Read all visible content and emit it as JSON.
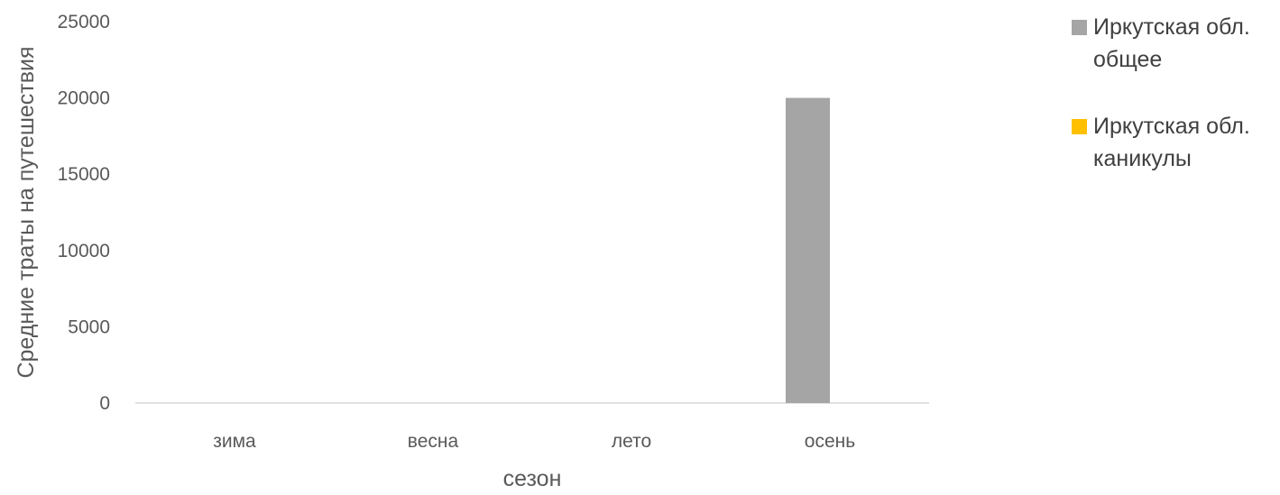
{
  "chart_data": {
    "type": "bar",
    "title": "",
    "xlabel": "сезон",
    "ylabel": "Средние траты на путешествия",
    "categories": [
      "зима",
      "весна",
      "лето",
      "осень"
    ],
    "series": [
      {
        "name_lines": [
          "Иркутская обл.",
          "общее"
        ],
        "color": "#A5A5A5",
        "values": [
          0,
          0,
          0,
          20000
        ]
      },
      {
        "name_lines": [
          "Иркутская обл.",
          "каникулы"
        ],
        "color": "#FFC000",
        "values": [
          0,
          0,
          0,
          0
        ]
      }
    ],
    "ylim": [
      0,
      25000
    ],
    "yticks": [
      0,
      5000,
      10000,
      15000,
      20000,
      25000
    ],
    "grid": false,
    "legend_position": "right"
  }
}
